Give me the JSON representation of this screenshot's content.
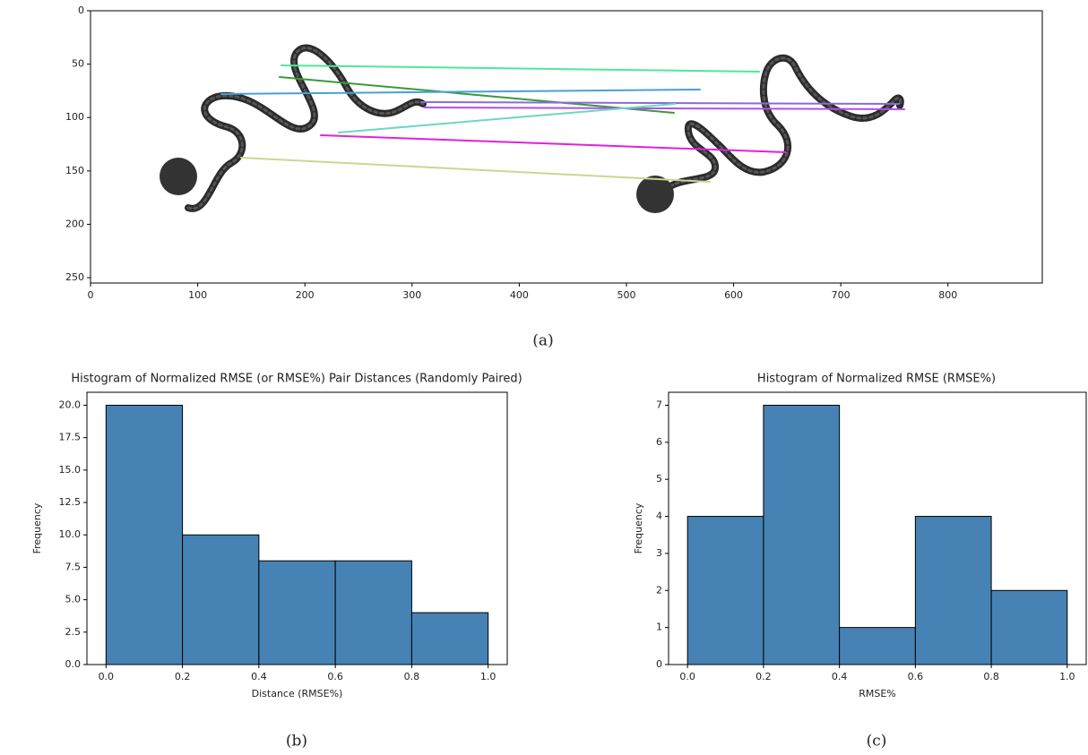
{
  "chart_data": [
    {
      "type": "image",
      "caption": "(a)",
      "xlim": [
        0,
        888
      ],
      "ylim": [
        255,
        0
      ],
      "xticks": [
        0,
        100,
        200,
        300,
        400,
        500,
        600,
        700,
        800
      ],
      "yticks": [
        0,
        50,
        100,
        150,
        200,
        250
      ]
    },
    {
      "type": "histogram",
      "caption": "(b)",
      "title": "Histogram of Normalized RMSE (or RMSE%) Pair Distances (Randomly Paired)",
      "x_label": "Distance (RMSE%)",
      "y_label": "Frequency",
      "color": "#4682b4",
      "bins": [
        0,
        0.2,
        0.4,
        0.6,
        0.8,
        1.0
      ],
      "values": [
        20,
        10,
        8,
        8,
        4
      ],
      "xlim": [
        -0.05,
        1.05
      ],
      "ylim": [
        0,
        21
      ],
      "xticks": [
        {
          "value": 0,
          "label": "0.0"
        },
        0.2,
        0.4,
        0.6,
        0.8,
        {
          "value": 1,
          "label": "1.0"
        }
      ],
      "yticks": [
        {
          "value": 0,
          "label": "0.0"
        },
        2.5,
        {
          "value": 5,
          "label": "5.0"
        },
        7.5,
        {
          "value": 10,
          "label": "10.0"
        },
        12.5,
        {
          "value": 15,
          "label": "15.0"
        },
        17.5,
        {
          "value": 20,
          "label": "20.0"
        }
      ]
    },
    {
      "type": "histogram",
      "caption": "(c)",
      "title": "Histogram of Normalized RMSE (RMSE%)",
      "x_label": "RMSE%",
      "y_label": "Frequency",
      "color": "#4682b4",
      "bins": [
        0,
        0.2,
        0.4,
        0.6,
        0.8,
        1.0
      ],
      "values": [
        4,
        7,
        1,
        4,
        2
      ],
      "xlim": [
        -0.05,
        1.05
      ],
      "ylim": [
        0,
        7.35
      ],
      "xticks": [
        {
          "value": 0,
          "label": "0.0"
        },
        0.2,
        0.4,
        0.6,
        0.8,
        {
          "value": 1,
          "label": "1.0"
        }
      ],
      "yticks": [
        0,
        1,
        2,
        3,
        4,
        5,
        6,
        7
      ]
    }
  ]
}
